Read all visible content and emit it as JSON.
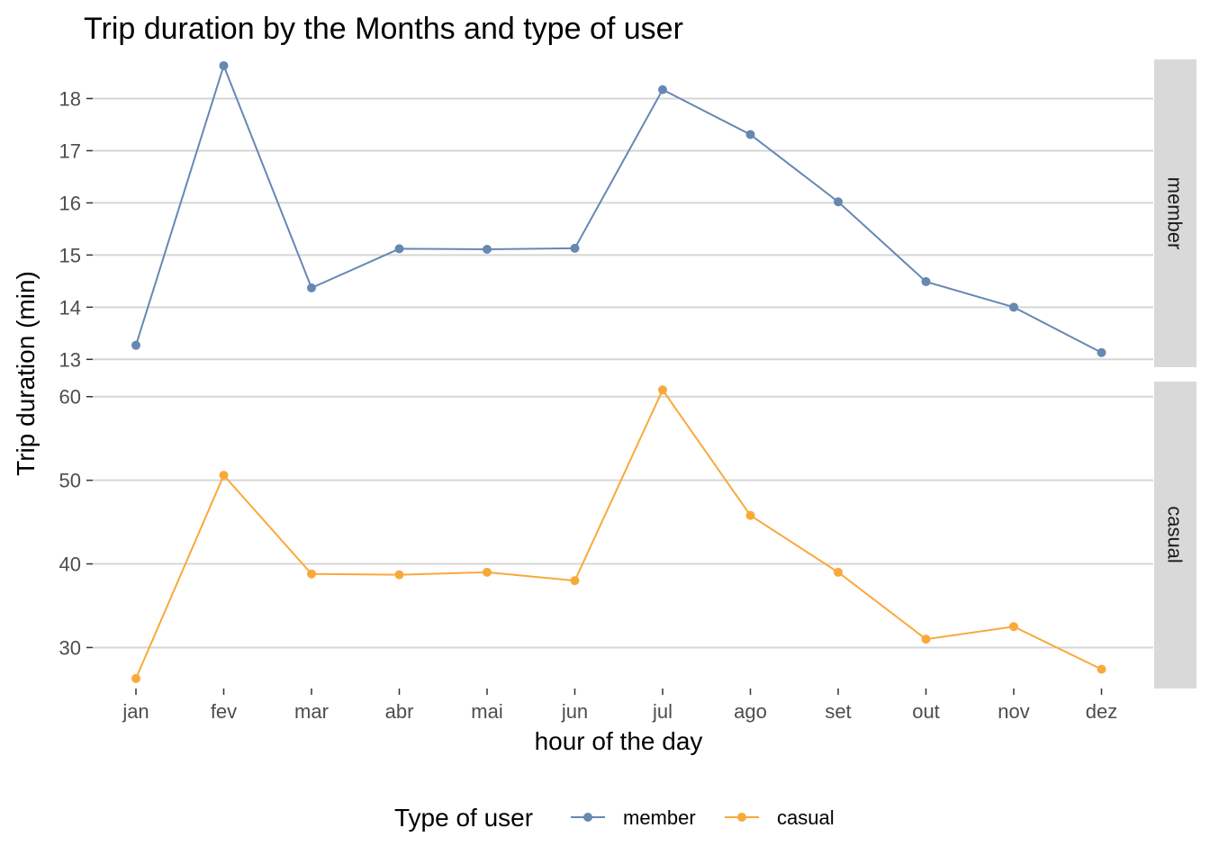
{
  "chart_data": {
    "type": "line",
    "title": "Trip duration by the Months and type of user",
    "xlabel": "hour of the day",
    "ylabel": "Trip duration (min)",
    "categories": [
      "jan",
      "fev",
      "mar",
      "abr",
      "mai",
      "jun",
      "jul",
      "ago",
      "set",
      "out",
      "nov",
      "dez"
    ],
    "legend": {
      "title": "Type of user",
      "position": "bottom",
      "entries": [
        "member",
        "casual"
      ]
    },
    "grid": "horizontal major",
    "panels": [
      {
        "strip_label": "member",
        "series": "member",
        "color": "#6688b3",
        "ylim": [
          12.85,
          18.75
        ],
        "yticks": [
          13,
          14,
          15,
          16,
          17,
          18
        ],
        "values": [
          13.27,
          18.63,
          14.37,
          15.12,
          15.11,
          15.13,
          18.17,
          17.31,
          16.02,
          14.49,
          14.0,
          13.13
        ]
      },
      {
        "strip_label": "casual",
        "series": "casual",
        "color": "#f9a93a",
        "ylim": [
          25.1,
          61.8
        ],
        "yticks": [
          30,
          40,
          50,
          60
        ],
        "values": [
          26.3,
          50.6,
          38.8,
          38.7,
          39.0,
          38.0,
          60.8,
          45.8,
          39.0,
          31.0,
          32.5,
          27.4
        ]
      }
    ]
  }
}
